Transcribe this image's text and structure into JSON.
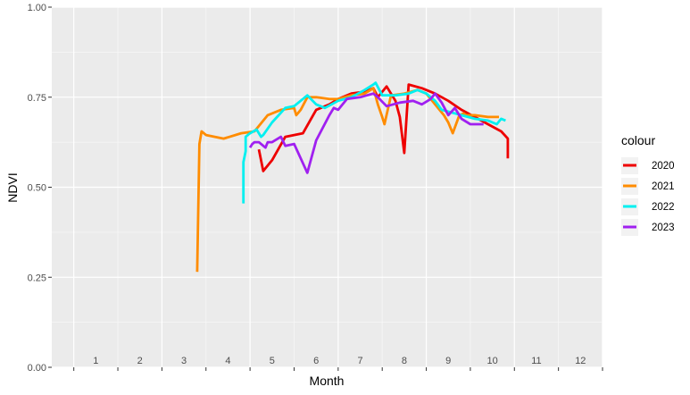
{
  "chart_data": {
    "type": "line",
    "title": "",
    "xlabel": "Month",
    "ylabel": "NDVI",
    "xlim": [
      0.5,
      13
    ],
    "ylim": [
      0,
      1
    ],
    "x_month_labels": [
      "1",
      "2",
      "3",
      "4",
      "5",
      "6",
      "7",
      "8",
      "9",
      "10",
      "11",
      "12"
    ],
    "y_ticks": [
      0.0,
      0.25,
      0.5,
      0.75,
      1.0
    ],
    "y_tick_labels": [
      "0.00",
      "0.25",
      "0.50",
      "0.75",
      "1.00"
    ],
    "grid": true,
    "legend": {
      "title": "colour",
      "position": "right"
    },
    "series": [
      {
        "name": "2020",
        "color": "#ee0000",
        "x": [
          5.2,
          5.3,
          5.5,
          5.8,
          6.0,
          6.2,
          6.5,
          6.8,
          7.0,
          7.3,
          7.6,
          7.8,
          7.9,
          8.1,
          8.3,
          8.4,
          8.5,
          8.6,
          8.9,
          9.2,
          9.5,
          9.8,
          10.1,
          10.4,
          10.7,
          10.85,
          10.85
        ],
        "y": [
          0.605,
          0.545,
          0.575,
          0.64,
          0.645,
          0.65,
          0.715,
          0.73,
          0.745,
          0.76,
          0.765,
          0.775,
          0.75,
          0.78,
          0.74,
          0.695,
          0.595,
          0.785,
          0.775,
          0.76,
          0.74,
          0.715,
          0.695,
          0.675,
          0.655,
          0.635,
          0.58
        ]
      },
      {
        "name": "2021",
        "color": "#ff8c00",
        "x": [
          3.8,
          3.85,
          3.9,
          4.0,
          4.2,
          4.4,
          4.8,
          5.1,
          5.4,
          5.7,
          6.0,
          6.05,
          6.15,
          6.3,
          6.5,
          6.8,
          7.0,
          7.3,
          7.6,
          7.8,
          7.9,
          8.0,
          8.05,
          8.2,
          8.5,
          8.8,
          9.0,
          9.2,
          9.4,
          9.5,
          9.6,
          9.75,
          9.85,
          9.9,
          10.1,
          10.4,
          10.65
        ],
        "y": [
          0.265,
          0.62,
          0.655,
          0.645,
          0.64,
          0.635,
          0.65,
          0.655,
          0.7,
          0.715,
          0.72,
          0.7,
          0.715,
          0.75,
          0.75,
          0.745,
          0.745,
          0.755,
          0.76,
          0.775,
          0.73,
          0.695,
          0.675,
          0.755,
          0.76,
          0.77,
          0.76,
          0.73,
          0.7,
          0.68,
          0.65,
          0.7,
          0.705,
          0.7,
          0.7,
          0.695,
          0.695
        ]
      },
      {
        "name": "2022",
        "color": "#00f0f0",
        "x": [
          4.85,
          4.85,
          4.9,
          4.9,
          5.0,
          5.15,
          5.25,
          5.3,
          5.5,
          5.8,
          6.0,
          6.3,
          6.5,
          6.7,
          7.0,
          7.3,
          7.6,
          7.8,
          7.85,
          8.0,
          8.3,
          8.6,
          8.8,
          9.0,
          9.2,
          9.35,
          9.5,
          9.8,
          10.1,
          10.4,
          10.6,
          10.7,
          10.8
        ],
        "y": [
          0.455,
          0.57,
          0.6,
          0.64,
          0.65,
          0.66,
          0.64,
          0.645,
          0.68,
          0.72,
          0.725,
          0.755,
          0.73,
          0.72,
          0.74,
          0.75,
          0.77,
          0.785,
          0.79,
          0.755,
          0.755,
          0.76,
          0.77,
          0.76,
          0.74,
          0.715,
          0.71,
          0.7,
          0.69,
          0.685,
          0.675,
          0.69,
          0.685
        ]
      },
      {
        "name": "2023",
        "color": "#a020f0",
        "x": [
          5.0,
          5.05,
          5.1,
          5.2,
          5.35,
          5.4,
          5.5,
          5.7,
          5.8,
          6.0,
          6.3,
          6.5,
          6.8,
          6.9,
          7.0,
          7.2,
          7.5,
          7.8,
          7.9,
          8.1,
          8.4,
          8.7,
          8.9,
          9.1,
          9.2,
          9.35,
          9.5,
          9.65,
          9.8,
          10.0,
          10.3
        ],
        "y": [
          0.61,
          0.62,
          0.625,
          0.625,
          0.61,
          0.625,
          0.625,
          0.64,
          0.615,
          0.62,
          0.54,
          0.63,
          0.7,
          0.72,
          0.715,
          0.745,
          0.75,
          0.76,
          0.75,
          0.725,
          0.735,
          0.74,
          0.73,
          0.745,
          0.76,
          0.735,
          0.7,
          0.72,
          0.69,
          0.675,
          0.675
        ]
      }
    ]
  }
}
